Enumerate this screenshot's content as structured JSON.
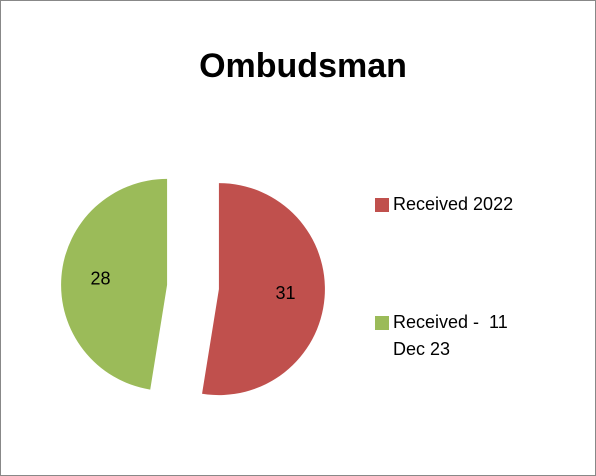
{
  "chart_data": {
    "type": "pie",
    "title": "Ombudsman",
    "categories": [
      "Received 2022",
      "Received -  11 Dec 23"
    ],
    "values": [
      31,
      28
    ],
    "colors": [
      "#c0504d",
      "#9bbb59"
    ],
    "legend": "right"
  }
}
